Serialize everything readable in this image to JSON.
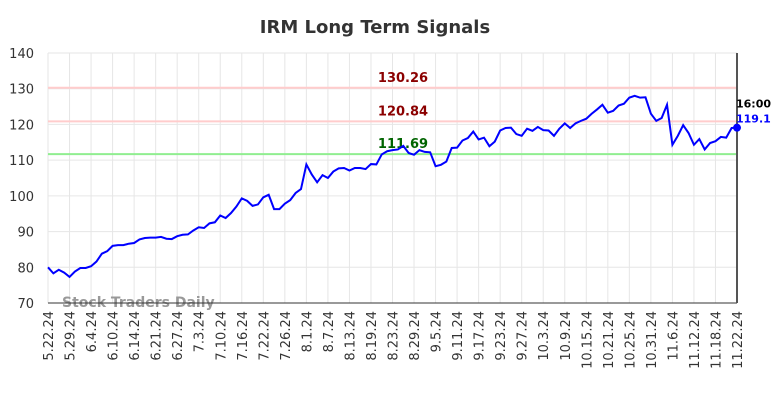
{
  "chart_data": {
    "type": "line",
    "title": "IRM Long Term Signals",
    "watermark": "Stock Traders Daily",
    "color": "#0000ff",
    "categories": [
      "5.22.24",
      null,
      null,
      null,
      "5.29.24",
      null,
      null,
      null,
      "6.4.24",
      null,
      null,
      null,
      "6.10.24",
      null,
      null,
      null,
      "6.14.24",
      null,
      null,
      null,
      "6.21.24",
      null,
      null,
      null,
      "6.27.24",
      null,
      null,
      null,
      "7.3.24",
      null,
      null,
      null,
      "7.10.24",
      null,
      null,
      null,
      "7.16.24",
      null,
      null,
      null,
      "7.22.24",
      null,
      null,
      null,
      "7.26.24",
      null,
      null,
      null,
      "8.1.24",
      null,
      null,
      null,
      "8.7.24",
      null,
      null,
      null,
      "8.13.24",
      null,
      null,
      null,
      "8.19.24",
      null,
      null,
      null,
      "8.23.24",
      null,
      null,
      null,
      "8.29.24",
      null,
      null,
      null,
      "9.5.24",
      null,
      null,
      null,
      "9.11.24",
      null,
      null,
      null,
      "9.17.24",
      null,
      null,
      null,
      "9.23.24",
      null,
      null,
      null,
      "9.27.24",
      null,
      null,
      null,
      "10.3.24",
      null,
      null,
      null,
      "10.9.24",
      null,
      null,
      null,
      "10.15.24",
      null,
      null,
      null,
      "10.21.24",
      null,
      null,
      null,
      "10.25.24",
      null,
      null,
      null,
      "10.31.24",
      null,
      null,
      null,
      "11.6.24",
      null,
      null,
      null,
      "11.12.24",
      null,
      null,
      null,
      "11.18.24",
      null,
      null,
      null,
      "11.22.24"
    ],
    "values": [
      80,
      78.3,
      79.3,
      78.5,
      77.3,
      78.8,
      79.8,
      79.8,
      80.3,
      81.6,
      83.8,
      84.5,
      86.0,
      86.2,
      86.2,
      86.6,
      86.8,
      87.8,
      88.2,
      88.3,
      88.3,
      88.5,
      88.0,
      87.9,
      88.7,
      89.1,
      89.2,
      90.3,
      91.2,
      91.0,
      92.3,
      92.6,
      94.5,
      93.8,
      95.2,
      97.0,
      99.3,
      98.6,
      97.2,
      97.6,
      99.6,
      100.3,
      96.3,
      96.3,
      97.8,
      98.8,
      100.8,
      101.9,
      108.8,
      106.0,
      103.8,
      105.8,
      105.0,
      106.8,
      107.7,
      107.8,
      107.1,
      107.8,
      107.8,
      107.5,
      108.9,
      108.8,
      111.6,
      112.5,
      112.8,
      113.0,
      114.0,
      112.0,
      111.5,
      112.8,
      112.3,
      112.2,
      108.3,
      108.7,
      109.6,
      113.4,
      113.5,
      115.5,
      116.2,
      118.0,
      115.8,
      116.3,
      113.9,
      115.2,
      118.3,
      119.0,
      119.1,
      117.3,
      116.8,
      118.8,
      118.2,
      119.3,
      118.4,
      118.3,
      116.8,
      118.8,
      120.3,
      119.0,
      120.3,
      121.0,
      121.6,
      123.0,
      124.2,
      125.5,
      123.3,
      123.8,
      125.3,
      125.8,
      127.5,
      128.0,
      127.5,
      127.6,
      123.0,
      121.0,
      121.8,
      125.5,
      114.3,
      116.8,
      119.8,
      117.6,
      114.3,
      115.9,
      113.0,
      114.8,
      115.3,
      116.5,
      116.3,
      119.0,
      119.1
    ],
    "ylim": [
      70,
      140
    ],
    "yticks": [
      70,
      80,
      90,
      100,
      110,
      120,
      130,
      140
    ],
    "grid": true,
    "hlines": [
      {
        "value": 130.26,
        "color": "#ffcccc",
        "label_color": "#8b0000"
      },
      {
        "value": 120.84,
        "color": "#ffcccc",
        "label_color": "#8b0000"
      },
      {
        "value": 111.69,
        "color": "#90ee90",
        "label_color": "#006400"
      }
    ],
    "last_label": {
      "time": "16:00",
      "value": 119.1
    }
  }
}
